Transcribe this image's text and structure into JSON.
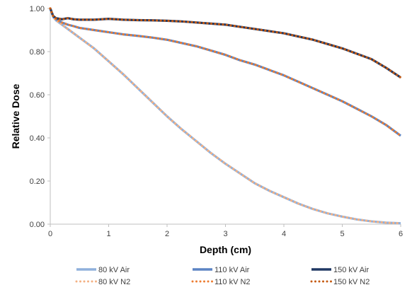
{
  "chart_data": {
    "type": "line",
    "title": "",
    "xlabel": "Depth (cm)",
    "ylabel": "Relative Dose",
    "xlim": [
      0,
      6
    ],
    "ylim": [
      0,
      1
    ],
    "x_ticks": [
      "0",
      "1",
      "2",
      "3",
      "4",
      "5",
      "6"
    ],
    "y_ticks": [
      "0.00",
      "0.20",
      "0.40",
      "0.60",
      "0.80",
      "1.00"
    ],
    "grid": false,
    "legend_position": "bottom",
    "x": [
      0,
      0.05,
      0.1,
      0.2,
      0.3,
      0.4,
      0.5,
      0.75,
      1,
      1.25,
      1.5,
      1.75,
      2,
      2.25,
      2.5,
      2.75,
      3,
      3.25,
      3.5,
      3.75,
      4,
      4.25,
      4.5,
      4.75,
      5,
      5.25,
      5.5,
      5.75,
      6
    ],
    "series": [
      {
        "name": "80 kV Air",
        "color": "#8fb0dc",
        "style": "solid",
        "values": [
          1.0,
          0.96,
          0.945,
          0.925,
          0.905,
          0.885,
          0.865,
          0.815,
          0.755,
          0.695,
          0.63,
          0.565,
          0.5,
          0.44,
          0.385,
          0.33,
          0.28,
          0.235,
          0.19,
          0.155,
          0.125,
          0.095,
          0.07,
          0.05,
          0.035,
          0.022,
          0.013,
          0.007,
          0.004
        ]
      },
      {
        "name": "110 kV Air",
        "color": "#5b84c4",
        "style": "solid",
        "values": [
          1.0,
          0.965,
          0.95,
          0.935,
          0.925,
          0.918,
          0.91,
          0.9,
          0.89,
          0.88,
          0.873,
          0.865,
          0.855,
          0.84,
          0.825,
          0.805,
          0.785,
          0.76,
          0.74,
          0.715,
          0.69,
          0.66,
          0.63,
          0.6,
          0.57,
          0.535,
          0.5,
          0.46,
          0.41
        ]
      },
      {
        "name": "150 kV Air",
        "color": "#203864",
        "style": "solid",
        "values": [
          1.0,
          0.965,
          0.955,
          0.95,
          0.955,
          0.95,
          0.948,
          0.948,
          0.952,
          0.948,
          0.946,
          0.945,
          0.943,
          0.94,
          0.935,
          0.93,
          0.925,
          0.915,
          0.905,
          0.895,
          0.885,
          0.87,
          0.855,
          0.835,
          0.815,
          0.79,
          0.765,
          0.725,
          0.68
        ]
      },
      {
        "name": "80 kV N2",
        "color": "#f4b183",
        "style": "dotted",
        "values": [
          1.0,
          0.96,
          0.945,
          0.925,
          0.905,
          0.885,
          0.865,
          0.815,
          0.755,
          0.695,
          0.63,
          0.565,
          0.5,
          0.44,
          0.385,
          0.33,
          0.28,
          0.235,
          0.19,
          0.155,
          0.125,
          0.095,
          0.07,
          0.05,
          0.035,
          0.022,
          0.013,
          0.007,
          0.004
        ]
      },
      {
        "name": "110 kV N2",
        "color": "#ed7d31",
        "style": "dotted",
        "values": [
          1.0,
          0.965,
          0.95,
          0.935,
          0.925,
          0.918,
          0.91,
          0.9,
          0.89,
          0.88,
          0.873,
          0.865,
          0.855,
          0.84,
          0.825,
          0.805,
          0.785,
          0.76,
          0.74,
          0.715,
          0.69,
          0.66,
          0.63,
          0.6,
          0.57,
          0.535,
          0.5,
          0.46,
          0.41
        ]
      },
      {
        "name": "150 kV N2",
        "color": "#c55a11",
        "style": "dotted",
        "values": [
          1.0,
          0.965,
          0.955,
          0.95,
          0.955,
          0.95,
          0.948,
          0.948,
          0.952,
          0.948,
          0.946,
          0.945,
          0.943,
          0.94,
          0.935,
          0.93,
          0.925,
          0.915,
          0.905,
          0.895,
          0.885,
          0.87,
          0.855,
          0.835,
          0.815,
          0.79,
          0.765,
          0.725,
          0.68
        ]
      }
    ]
  }
}
